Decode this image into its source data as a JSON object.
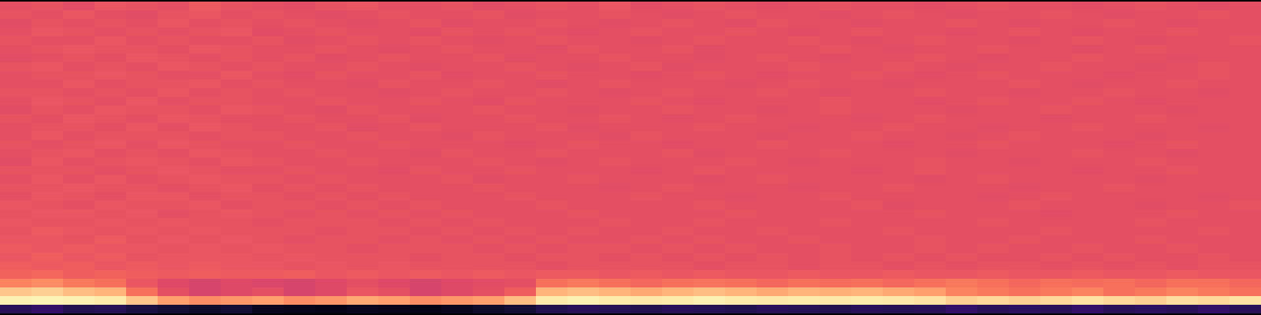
{
  "chart_data": {
    "type": "heatmap",
    "color": "magma",
    "tick_labels": false,
    "color_range": [
      0,
      100
    ],
    "cells": [
      [
        62,
        63,
        61,
        64,
        63,
        62,
        65,
        63,
        62,
        61,
        63,
        64,
        62,
        62,
        63,
        61,
        62,
        63,
        62,
        64,
        61,
        62,
        63,
        62,
        61,
        62,
        63,
        62,
        62,
        61,
        62,
        63,
        62,
        62,
        61,
        62,
        63,
        62,
        61,
        62
      ],
      [
        63,
        62,
        64,
        62,
        61,
        63,
        64,
        62,
        63,
        62,
        61,
        62,
        63,
        62,
        62,
        63,
        61,
        62,
        62,
        63,
        62,
        61,
        62,
        63,
        62,
        62,
        61,
        62,
        63,
        62,
        61,
        62,
        62,
        63,
        62,
        61,
        62,
        62,
        63,
        62
      ],
      [
        61,
        63,
        62,
        63,
        62,
        64,
        62,
        63,
        62,
        63,
        62,
        61,
        62,
        63,
        61,
        62,
        62,
        63,
        62,
        61,
        62,
        63,
        62,
        61,
        63,
        62,
        62,
        61,
        62,
        62,
        63,
        62,
        61,
        62,
        62,
        63,
        62,
        61,
        62,
        62
      ],
      [
        62,
        64,
        63,
        62,
        63,
        62,
        63,
        64,
        61,
        62,
        63,
        62,
        62,
        61,
        63,
        62,
        63,
        62,
        61,
        62,
        63,
        62,
        62,
        63,
        62,
        61,
        62,
        63,
        62,
        62,
        61,
        62,
        63,
        62,
        61,
        62,
        62,
        63,
        62,
        62
      ],
      [
        63,
        62,
        62,
        64,
        62,
        63,
        62,
        62,
        63,
        61,
        62,
        63,
        62,
        63,
        62,
        61,
        62,
        63,
        62,
        62,
        61,
        62,
        63,
        62,
        62,
        63,
        62,
        61,
        62,
        63,
        62,
        62,
        61,
        62,
        63,
        62,
        61,
        62,
        62,
        63
      ],
      [
        62,
        63,
        64,
        63,
        63,
        62,
        64,
        63,
        62,
        62,
        63,
        62,
        61,
        62,
        63,
        62,
        62,
        61,
        63,
        62,
        62,
        63,
        61,
        62,
        62,
        62,
        63,
        62,
        61,
        62,
        62,
        63,
        62,
        62,
        61,
        62,
        63,
        62,
        62,
        62
      ],
      [
        61,
        62,
        63,
        62,
        64,
        63,
        62,
        63,
        62,
        63,
        61,
        62,
        63,
        62,
        62,
        63,
        61,
        62,
        62,
        63,
        62,
        62,
        61,
        62,
        63,
        62,
        61,
        62,
        62,
        63,
        62,
        61,
        62,
        62,
        63,
        62,
        62,
        61,
        62,
        62
      ],
      [
        63,
        64,
        62,
        63,
        62,
        64,
        63,
        62,
        63,
        62,
        62,
        63,
        62,
        61,
        62,
        62,
        63,
        62,
        61,
        62,
        63,
        61,
        62,
        62,
        62,
        63,
        62,
        62,
        63,
        62,
        61,
        62,
        62,
        63,
        62,
        62,
        61,
        62,
        63,
        62
      ],
      [
        62,
        63,
        63,
        64,
        63,
        62,
        62,
        64,
        62,
        61,
        63,
        62,
        62,
        63,
        61,
        62,
        62,
        63,
        62,
        62,
        61,
        62,
        63,
        62,
        61,
        62,
        62,
        63,
        62,
        61,
        62,
        63,
        62,
        62,
        62,
        61,
        62,
        62,
        63,
        62
      ],
      [
        62,
        62,
        64,
        62,
        63,
        63,
        64,
        62,
        63,
        62,
        62,
        61,
        63,
        62,
        62,
        63,
        62,
        61,
        62,
        63,
        62,
        62,
        62,
        61,
        62,
        63,
        62,
        62,
        61,
        62,
        62,
        62,
        63,
        62,
        61,
        62,
        62,
        63,
        62,
        62
      ],
      [
        63,
        63,
        62,
        63,
        62,
        64,
        62,
        63,
        62,
        63,
        62,
        62,
        61,
        62,
        63,
        62,
        62,
        63,
        62,
        61,
        62,
        63,
        62,
        62,
        63,
        62,
        61,
        62,
        62,
        63,
        62,
        62,
        61,
        62,
        62,
        63,
        62,
        62,
        61,
        62
      ],
      [
        62,
        64,
        63,
        62,
        64,
        62,
        63,
        63,
        62,
        62,
        63,
        62,
        62,
        63,
        62,
        61,
        63,
        62,
        62,
        62,
        63,
        62,
        61,
        62,
        62,
        62,
        63,
        62,
        62,
        61,
        62,
        63,
        62,
        62,
        63,
        62,
        61,
        62,
        62,
        62
      ],
      [
        61,
        63,
        62,
        64,
        63,
        63,
        62,
        64,
        63,
        62,
        61,
        63,
        62,
        62,
        62,
        63,
        62,
        62,
        61,
        62,
        62,
        63,
        62,
        62,
        61,
        62,
        63,
        62,
        62,
        62,
        61,
        62,
        62,
        63,
        62,
        62,
        62,
        61,
        62,
        62
      ],
      [
        63,
        62,
        64,
        63,
        62,
        64,
        63,
        62,
        62,
        63,
        62,
        62,
        63,
        61,
        62,
        62,
        63,
        62,
        62,
        63,
        62,
        61,
        62,
        63,
        62,
        62,
        62,
        61,
        62,
        63,
        62,
        62,
        62,
        61,
        62,
        62,
        63,
        62,
        62,
        62
      ],
      [
        62,
        63,
        63,
        62,
        64,
        62,
        64,
        63,
        62,
        62,
        63,
        61,
        62,
        63,
        62,
        62,
        62,
        63,
        61,
        62,
        62,
        62,
        63,
        62,
        62,
        61,
        62,
        62,
        63,
        62,
        62,
        61,
        62,
        62,
        63,
        62,
        62,
        62,
        61,
        62
      ],
      [
        62,
        64,
        62,
        63,
        63,
        63,
        62,
        63,
        63,
        62,
        62,
        63,
        62,
        62,
        61,
        63,
        62,
        62,
        62,
        61,
        63,
        62,
        62,
        62,
        61,
        62,
        62,
        63,
        62,
        62,
        61,
        62,
        63,
        62,
        62,
        62,
        61,
        62,
        62,
        62
      ],
      [
        63,
        62,
        63,
        64,
        62,
        64,
        63,
        62,
        62,
        63,
        62,
        62,
        63,
        62,
        62,
        62,
        61,
        62,
        63,
        62,
        62,
        61,
        62,
        62,
        63,
        62,
        62,
        62,
        61,
        62,
        62,
        63,
        62,
        62,
        62,
        61,
        62,
        63,
        62,
        62
      ],
      [
        62,
        63,
        64,
        62,
        63,
        62,
        64,
        63,
        62,
        62,
        63,
        62,
        62,
        61,
        63,
        62,
        62,
        63,
        62,
        62,
        62,
        63,
        61,
        62,
        62,
        62,
        63,
        62,
        62,
        62,
        61,
        62,
        62,
        62,
        63,
        62,
        62,
        61,
        62,
        62
      ],
      [
        61,
        64,
        62,
        63,
        64,
        63,
        62,
        64,
        63,
        62,
        62,
        63,
        62,
        62,
        62,
        63,
        62,
        61,
        62,
        63,
        62,
        62,
        62,
        63,
        62,
        61,
        62,
        62,
        62,
        63,
        62,
        62,
        61,
        62,
        62,
        62,
        63,
        62,
        62,
        62
      ],
      [
        63,
        63,
        63,
        62,
        63,
        64,
        63,
        62,
        62,
        63,
        62,
        62,
        61,
        63,
        62,
        62,
        63,
        62,
        62,
        62,
        61,
        62,
        63,
        62,
        62,
        62,
        62,
        61,
        62,
        63,
        62,
        62,
        62,
        62,
        61,
        62,
        62,
        63,
        62,
        62
      ],
      [
        62,
        64,
        62,
        64,
        62,
        63,
        64,
        63,
        63,
        62,
        63,
        62,
        62,
        62,
        63,
        61,
        62,
        62,
        63,
        62,
        62,
        62,
        61,
        62,
        63,
        62,
        62,
        62,
        62,
        61,
        62,
        63,
        62,
        62,
        62,
        62,
        61,
        62,
        62,
        62
      ],
      [
        63,
        63,
        64,
        63,
        63,
        62,
        63,
        64,
        62,
        63,
        62,
        63,
        62,
        62,
        62,
        63,
        62,
        62,
        62,
        61,
        62,
        63,
        62,
        62,
        62,
        61,
        62,
        62,
        63,
        62,
        62,
        62,
        61,
        62,
        62,
        63,
        62,
        62,
        62,
        62
      ],
      [
        62,
        64,
        63,
        62,
        64,
        64,
        62,
        63,
        63,
        62,
        63,
        62,
        63,
        62,
        62,
        62,
        63,
        62,
        62,
        62,
        63,
        62,
        62,
        61,
        62,
        62,
        63,
        62,
        62,
        62,
        62,
        61,
        62,
        63,
        62,
        62,
        62,
        62,
        61,
        62
      ],
      [
        64,
        63,
        62,
        64,
        63,
        63,
        64,
        62,
        63,
        63,
        62,
        63,
        62,
        63,
        62,
        62,
        62,
        63,
        62,
        62,
        62,
        62,
        63,
        62,
        62,
        62,
        62,
        63,
        61,
        62,
        62,
        62,
        63,
        62,
        62,
        62,
        61,
        62,
        62,
        63
      ],
      [
        63,
        64,
        64,
        63,
        64,
        62,
        63,
        64,
        63,
        62,
        63,
        62,
        63,
        62,
        63,
        62,
        62,
        62,
        63,
        62,
        62,
        62,
        62,
        63,
        62,
        62,
        62,
        62,
        62,
        63,
        62,
        62,
        62,
        61,
        62,
        62,
        62,
        63,
        62,
        62
      ],
      [
        64,
        63,
        63,
        64,
        63,
        64,
        63,
        63,
        62,
        63,
        63,
        63,
        62,
        63,
        62,
        63,
        62,
        62,
        62,
        63,
        62,
        62,
        63,
        62,
        62,
        62,
        63,
        62,
        62,
        62,
        62,
        63,
        62,
        62,
        62,
        62,
        63,
        62,
        62,
        62
      ],
      [
        63,
        65,
        64,
        63,
        64,
        63,
        64,
        63,
        63,
        63,
        62,
        63,
        63,
        62,
        63,
        62,
        63,
        62,
        63,
        62,
        62,
        63,
        62,
        62,
        63,
        62,
        62,
        62,
        63,
        62,
        62,
        62,
        62,
        63,
        62,
        62,
        62,
        62,
        63,
        62
      ],
      [
        64,
        64,
        63,
        65,
        63,
        64,
        63,
        64,
        63,
        62,
        63,
        63,
        62,
        63,
        62,
        63,
        62,
        63,
        62,
        62,
        63,
        62,
        63,
        62,
        62,
        63,
        62,
        62,
        62,
        63,
        62,
        62,
        63,
        62,
        62,
        62,
        63,
        62,
        62,
        62
      ],
      [
        65,
        64,
        65,
        64,
        64,
        63,
        64,
        63,
        64,
        63,
        63,
        62,
        63,
        63,
        63,
        62,
        63,
        62,
        63,
        63,
        62,
        63,
        62,
        63,
        62,
        62,
        63,
        62,
        62,
        63,
        62,
        63,
        62,
        62,
        63,
        62,
        62,
        63,
        62,
        62
      ],
      [
        64,
        66,
        64,
        65,
        63,
        64,
        64,
        64,
        63,
        64,
        63,
        63,
        63,
        62,
        63,
        63,
        62,
        63,
        63,
        62,
        63,
        62,
        63,
        62,
        63,
        62,
        63,
        62,
        63,
        62,
        63,
        62,
        62,
        63,
        62,
        63,
        62,
        62,
        63,
        62
      ],
      [
        66,
        65,
        66,
        64,
        65,
        64,
        65,
        64,
        64,
        63,
        64,
        63,
        64,
        63,
        63,
        63,
        63,
        62,
        63,
        63,
        63,
        63,
        62,
        63,
        63,
        62,
        63,
        63,
        62,
        63,
        62,
        63,
        63,
        62,
        63,
        62,
        63,
        62,
        63,
        63
      ],
      [
        67,
        68,
        66,
        67,
        66,
        65,
        66,
        65,
        65,
        66,
        64,
        65,
        64,
        65,
        64,
        65,
        64,
        65,
        65,
        64,
        65,
        64,
        65,
        64,
        64,
        65,
        64,
        64,
        65,
        64,
        64,
        65,
        64,
        64,
        65,
        64,
        64,
        65,
        64,
        64
      ],
      [
        74,
        76,
        72,
        70,
        64,
        60,
        58,
        60,
        59,
        58,
        60,
        62,
        60,
        58,
        60,
        61,
        62,
        70,
        72,
        70,
        68,
        70,
        71,
        70,
        68,
        70,
        69,
        70,
        68,
        70,
        72,
        70,
        68,
        70,
        69,
        70,
        68,
        70,
        70,
        68
      ],
      [
        88,
        90,
        86,
        84,
        70,
        62,
        58,
        60,
        62,
        58,
        60,
        64,
        62,
        58,
        60,
        62,
        66,
        84,
        86,
        84,
        82,
        84,
        86,
        84,
        82,
        84,
        83,
        84,
        82,
        80,
        74,
        72,
        70,
        72,
        74,
        70,
        72,
        74,
        72,
        70
      ],
      [
        97,
        98,
        97,
        96,
        88,
        80,
        76,
        78,
        80,
        76,
        78,
        82,
        80,
        76,
        78,
        80,
        86,
        96,
        97,
        96,
        95,
        96,
        97,
        96,
        95,
        96,
        95,
        96,
        95,
        94,
        90,
        92,
        90,
        92,
        94,
        92,
        90,
        93,
        92,
        94
      ],
      [
        16,
        18,
        14,
        15,
        12,
        10,
        8,
        10,
        6,
        5,
        4,
        6,
        5,
        4,
        6,
        8,
        10,
        14,
        16,
        15,
        14,
        16,
        15,
        14,
        16,
        15,
        14,
        16,
        15,
        16,
        18,
        16,
        17,
        16,
        18,
        16,
        17,
        16,
        18,
        16
      ]
    ]
  }
}
